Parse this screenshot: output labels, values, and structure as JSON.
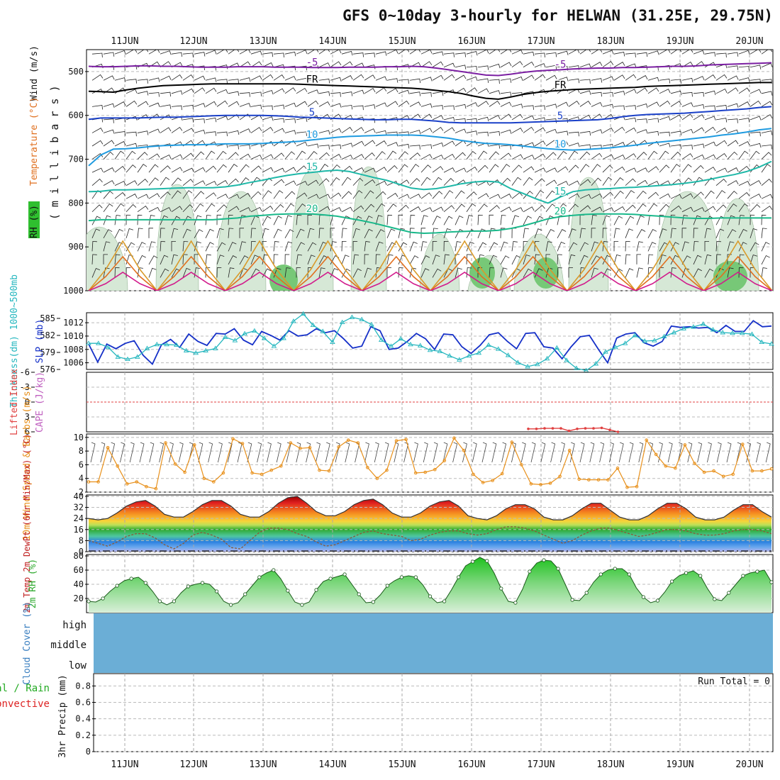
{
  "title": "GFS 0~10day 3-hourly for HELWAN (31.25E, 29.75N)",
  "colors": {
    "wind_barb": "#111111",
    "temp_warm": "#7b1fa2",
    "temp_cool": "#1565c0",
    "rh_fill": "#cfe6cf",
    "slp": "#1530c8",
    "thickness": "#26b7bf",
    "lifted_index": "#e04040",
    "cape": "#c060c0",
    "wind10m": "#e8901a",
    "rh2m": "#2faa2f",
    "cloud": "#6baed6",
    "precip_total": "#22aa22",
    "precip_conv": "#dd2222"
  },
  "chart_data": [
    {
      "type": "heatmap",
      "name": "upper-air",
      "x_labels": [
        "11JUN",
        "12JUN",
        "13JUN",
        "14JUN",
        "15JUN",
        "16JUN",
        "17JUN",
        "18JUN",
        "19JUN",
        "20JUN"
      ],
      "ylabel_parts": [
        "Wind (m/s)",
        "Temperature (°C)",
        "RH (%)",
        "( m i l l i b a r s )"
      ],
      "y_ticks": [
        500,
        600,
        700,
        800,
        900,
        1000
      ],
      "ylim": [
        450,
        1000
      ],
      "contours": [
        {
          "label": "-5",
          "color": "#7b1fa2",
          "values": [
            488,
            489,
            489,
            488,
            487,
            487,
            488,
            488,
            489,
            490,
            490,
            490,
            489,
            489,
            489,
            490,
            490,
            490,
            491,
            491,
            491,
            490,
            490,
            490,
            489,
            489,
            488,
            489,
            492,
            496,
            500,
            504,
            508,
            509,
            506,
            502,
            499,
            497,
            496,
            494,
            493,
            492,
            492,
            491,
            491,
            490,
            489,
            488,
            488,
            487,
            485,
            484,
            483,
            482,
            481,
            480
          ]
        },
        {
          "label": "FR",
          "color": "#000000",
          "values": [
            545,
            546,
            547,
            542,
            538,
            535,
            532,
            531,
            530,
            529,
            528,
            528,
            528,
            528,
            528,
            528,
            528,
            529,
            530,
            531,
            532,
            533,
            534,
            535,
            536,
            537,
            538,
            540,
            543,
            546,
            550,
            556,
            561,
            563,
            558,
            552,
            548,
            545,
            543,
            541,
            540,
            539,
            538,
            537,
            536,
            534,
            533,
            532,
            531,
            530,
            529,
            528,
            527,
            526,
            525,
            525
          ]
        },
        {
          "label": "5",
          "color": "#1a40c8",
          "values": [
            609,
            606,
            606,
            606,
            606,
            605,
            604,
            604,
            603,
            602,
            601,
            600,
            600,
            600,
            600,
            601,
            602,
            604,
            605,
            606,
            607,
            608,
            609,
            610,
            610,
            609,
            609,
            611,
            613,
            616,
            617,
            617,
            617,
            617,
            617,
            616,
            615,
            614,
            613,
            612,
            611,
            610,
            607,
            603,
            600,
            598,
            597,
            596,
            595,
            593,
            591,
            589,
            587,
            585,
            582,
            580
          ]
        },
        {
          "label": "10",
          "color": "#1f9be0",
          "values": [
            715,
            690,
            677,
            676,
            674,
            671,
            669,
            668,
            667,
            667,
            666,
            665,
            665,
            665,
            664,
            662,
            661,
            659,
            656,
            653,
            650,
            648,
            647,
            646,
            645,
            645,
            645,
            646,
            649,
            652,
            657,
            661,
            664,
            665,
            667,
            670,
            673,
            676,
            678,
            679,
            678,
            676,
            674,
            671,
            668,
            664,
            661,
            658,
            655,
            652,
            649,
            645,
            642,
            638,
            633,
            630
          ]
        },
        {
          "label": "15",
          "color": "#1fb8a8",
          "values": [
            774,
            773,
            770,
            770,
            769,
            768,
            767,
            766,
            765,
            765,
            765,
            763,
            759,
            753,
            748,
            742,
            737,
            733,
            730,
            727,
            725,
            728,
            735,
            742,
            748,
            757,
            766,
            769,
            767,
            762,
            756,
            752,
            750,
            752,
            767,
            778,
            790,
            800,
            786,
            774,
            770,
            768,
            767,
            765,
            764,
            762,
            760,
            758,
            755,
            751,
            746,
            740,
            735,
            728,
            718,
            705
          ]
        },
        {
          "label": "20",
          "color": "#19b88a",
          "values": [
            840,
            838,
            838,
            838,
            838,
            838,
            838,
            838,
            838,
            838,
            838,
            836,
            834,
            830,
            828,
            826,
            825,
            825,
            825,
            827,
            830,
            835,
            840,
            846,
            853,
            860,
            867,
            869,
            868,
            866,
            865,
            864,
            864,
            862,
            858,
            852,
            844,
            836,
            831,
            828,
            826,
            825,
            825,
            825,
            826,
            828,
            830,
            832,
            834,
            835,
            835,
            834,
            834,
            834,
            834,
            834
          ]
        }
      ]
    },
    {
      "type": "line",
      "name": "slp-thickness",
      "x_labels": [
        "11JUN",
        "12JUN",
        "13JUN",
        "14JUN",
        "15JUN",
        "16JUN",
        "17JUN",
        "18JUN",
        "19JUN",
        "20JUN"
      ],
      "ylabel_left": "Thickness(dm) 1000~500mb",
      "ylabel_right": "SLP (mb)",
      "y_ticks_thickness": [
        576,
        579,
        582,
        585
      ],
      "y_ticks_slp": [
        1006,
        1008,
        1010,
        1012
      ],
      "ylim_thickness": [
        576,
        586
      ],
      "ylim_slp": [
        1005,
        1013.5
      ],
      "series": [
        {
          "name": "SLP (mb)",
          "values": [
            1008.8,
            1006.1,
            1008.8,
            1008.1,
            1008.9,
            1009.3,
            1007.1,
            1005.8,
            1008.7,
            1009.5,
            1008.3,
            1010.3,
            1009.2,
            1008.6,
            1010.4,
            1010.3,
            1011.1,
            1009.4,
            1008.7,
            1010.7,
            1010.1,
            1009.4,
            1010.8,
            1010.0,
            1010.2,
            1011.1,
            1010.5,
            1010.8,
            1009.6,
            1008.2,
            1008.5,
            1011.4,
            1010.8,
            1008.0,
            1008.2,
            1009.2,
            1010.4,
            1009.6,
            1008.0,
            1010.3,
            1010.2,
            1008.4,
            1007.4,
            1008.6,
            1010.2,
            1010.5,
            1009.2,
            1008.1,
            1010.4,
            1010.5,
            1008.4,
            1008.2,
            1006.6,
            1008.4,
            1009.9,
            1010.1,
            1008.0,
            1006.0,
            1009.7,
            1010.3,
            1010.5,
            1009.0,
            1008.5,
            1009.2,
            1011.5,
            1011.3,
            1011.4,
            1011.2,
            1011.3,
            1010.5,
            1011.6,
            1010.7,
            1010.7,
            1012.3,
            1011.4,
            1011.5
          ]
        },
        {
          "name": "Thickness (dm)",
          "values": [
            580.6,
            580.6,
            579.9,
            578.2,
            577.8,
            578.2,
            579.7,
            580.4,
            580.4,
            580.3,
            579.3,
            578.9,
            579.3,
            579.7,
            581.7,
            581.1,
            582.3,
            582.8,
            581.5,
            580.1,
            581.5,
            584.5,
            585.8,
            583.8,
            582.7,
            580.8,
            584.3,
            585.2,
            584.8,
            583.9,
            581.2,
            580.1,
            581.4,
            580.4,
            580.2,
            579.4,
            579.2,
            578.4,
            577.7,
            578.4,
            578.9,
            580.3,
            579.6,
            578.5,
            577.2,
            576.5,
            576.9,
            577.9,
            579.8,
            577.6,
            576.2,
            575.8,
            577.0,
            579.1,
            579.9,
            580.6,
            582.0,
            581.0,
            581.1,
            581.8,
            582.5,
            583.2,
            583.5,
            584.0,
            583.0,
            582.5,
            582.4,
            582.4,
            582.2,
            580.8,
            580.5
          ]
        }
      ]
    },
    {
      "type": "line",
      "name": "stability",
      "x_labels": [
        "11JUN",
        "12JUN",
        "13JUN",
        "14JUN",
        "15JUN",
        "16JUN",
        "17JUN",
        "18JUN",
        "19JUN",
        "20JUN"
      ],
      "ylabel_left": "Lifted Index",
      "ylabel_right": "CAPE (J/kg)",
      "y_ticks": [
        "-6",
        "-3",
        "0",
        "3",
        "6"
      ],
      "ylim": [
        -6,
        6
      ],
      "series": [
        {
          "name": "Lifted Index",
          "values_shown": [
            5.8,
            5.8
          ]
        },
        {
          "name": "Lifted Index (17JUN-18JUN)",
          "values": [
            5.4,
            5.4,
            5.3,
            5.3,
            5.3,
            5.8,
            5.4,
            5.3,
            5.3,
            5.2,
            5.6,
            6.0
          ]
        }
      ]
    },
    {
      "type": "line",
      "name": "10m-wind",
      "x_labels": [
        "11JUN",
        "12JUN",
        "13JUN",
        "14JUN",
        "15JUN",
        "16JUN",
        "17JUN",
        "18JUN",
        "19JUN",
        "20JUN"
      ],
      "ylabel": "10m Wind Speed & Barbs (m/s)",
      "y_ticks": [
        2,
        4,
        6,
        8,
        10
      ],
      "ylim": [
        2,
        10.5
      ],
      "series": [
        {
          "name": "10m Wind Speed",
          "values": [
            3.5,
            3.5,
            8.5,
            5.8,
            3.2,
            3.5,
            2.8,
            2.5,
            9.2,
            6.1,
            4.9,
            8.9,
            4.0,
            3.5,
            4.8,
            9.8,
            9.1,
            4.8,
            4.6,
            5.2,
            5.8,
            9.2,
            8.4,
            8.5,
            5.2,
            5.1,
            8.6,
            9.6,
            9.2,
            5.6,
            4.0,
            5.2,
            9.5,
            9.7,
            4.8,
            4.9,
            5.3,
            6.6,
            9.9,
            8.1,
            4.6,
            3.4,
            3.7,
            4.7,
            9.3,
            6.0,
            3.2,
            3.1,
            3.3,
            4.3,
            8.1,
            3.9,
            3.8,
            3.8,
            3.8,
            5.5,
            2.7,
            2.8,
            9.6,
            7.5,
            5.8,
            5.5,
            8.9,
            6.2,
            4.9,
            5.1,
            4.3,
            4.6,
            9.0,
            5.1,
            5.1,
            5.4
          ]
        }
      ]
    },
    {
      "type": "area",
      "name": "2m-temp",
      "x_labels": [
        "11JUN",
        "12JUN",
        "13JUN",
        "14JUN",
        "15JUN",
        "16JUN",
        "17JUN",
        "18JUN",
        "19JUN",
        "20JUN"
      ],
      "ylabel": "2m Temp 2m DewPt (6hr Min/Max) (°C)",
      "y_ticks": [
        0,
        8,
        16,
        24,
        32,
        40
      ],
      "ylim": [
        0,
        41
      ],
      "series": [
        {
          "name": "2m Temp",
          "values": [
            24,
            23,
            24,
            28,
            33,
            36,
            37,
            33,
            27,
            25,
            25,
            29,
            34,
            37,
            37,
            33,
            27,
            25,
            25,
            29,
            35,
            39,
            40,
            35,
            29,
            26,
            26,
            29,
            34,
            37,
            38,
            34,
            28,
            25,
            25,
            28,
            33,
            36,
            37,
            33,
            26,
            24,
            23,
            26,
            31,
            34,
            34,
            31,
            25,
            23,
            23,
            26,
            31,
            35,
            35,
            30,
            25,
            23,
            23,
            26,
            31,
            35,
            35,
            31,
            25,
            23,
            23,
            25,
            30,
            34,
            34,
            29,
            25
          ]
        },
        {
          "name": "2m DewPt",
          "values": [
            8,
            6,
            4,
            7,
            11,
            13,
            13,
            10,
            5,
            2,
            6,
            12,
            14,
            12,
            9,
            3,
            2,
            8,
            14,
            17,
            17,
            16,
            13,
            11,
            7,
            4,
            5,
            8,
            11,
            14,
            15,
            13,
            12,
            11,
            8,
            9,
            12,
            14,
            15,
            15,
            13,
            12,
            13,
            16,
            18,
            18,
            17,
            15,
            12,
            9,
            6,
            8,
            12,
            15,
            17,
            17,
            15,
            13,
            11,
            12,
            14,
            16,
            16,
            15,
            13,
            12,
            12,
            13,
            15,
            16,
            16,
            15,
            13
          ]
        }
      ]
    },
    {
      "type": "area",
      "name": "2m-rh",
      "x_labels": [
        "11JUN",
        "12JUN",
        "13JUN",
        "14JUN",
        "15JUN",
        "16JUN",
        "17JUN",
        "18JUN",
        "19JUN",
        "20JUN"
      ],
      "ylabel": "2m RH (%)",
      "y_ticks": [
        20,
        40,
        60,
        80
      ],
      "ylim": [
        0,
        82
      ],
      "series": [
        {
          "name": "2m RH",
          "values": [
            16,
            15,
            20,
            30,
            38,
            45,
            48,
            50,
            42,
            30,
            16,
            11,
            16,
            28,
            37,
            40,
            42,
            40,
            30,
            16,
            11,
            14,
            26,
            38,
            50,
            56,
            60,
            48,
            31,
            15,
            11,
            15,
            32,
            44,
            48,
            51,
            54,
            40,
            26,
            14,
            15,
            25,
            38,
            45,
            50,
            52,
            50,
            39,
            23,
            14,
            16,
            32,
            50,
            66,
            72,
            78,
            73,
            56,
            34,
            16,
            14,
            33,
            58,
            70,
            74,
            73,
            62,
            40,
            18,
            17,
            28,
            43,
            54,
            60,
            62,
            62,
            54,
            35,
            22,
            14,
            17,
            29,
            44,
            52,
            56,
            59,
            52,
            34,
            19,
            17,
            28,
            40,
            52,
            56,
            58,
            60,
            43
          ]
        }
      ]
    },
    {
      "type": "heatmap",
      "name": "cloud-cover",
      "x_labels": [
        "11JUN",
        "12JUN",
        "13JUN",
        "14JUN",
        "15JUN",
        "16JUN",
        "17JUN",
        "18JUN",
        "19JUN",
        "20JUN"
      ],
      "ylabel": "Cloud Cover (%)",
      "levels": [
        "high",
        "middle",
        "low"
      ]
    },
    {
      "type": "bar",
      "name": "precip",
      "x_labels": [
        "11JUN",
        "12JUN",
        "13JUN",
        "14JUN",
        "15JUN",
        "16JUN",
        "17JUN",
        "18JUN",
        "19JUN",
        "20JUN"
      ],
      "ylabel": "3hr Precip (mm)",
      "legend_total": "Total / Rain",
      "legend_conv": "Convective",
      "run_total": "Run Total = 0",
      "y_ticks": [
        "0",
        "0.2",
        "0.4",
        "0.6",
        "0.8"
      ],
      "ylim": [
        0,
        0.95
      ],
      "values": []
    }
  ]
}
